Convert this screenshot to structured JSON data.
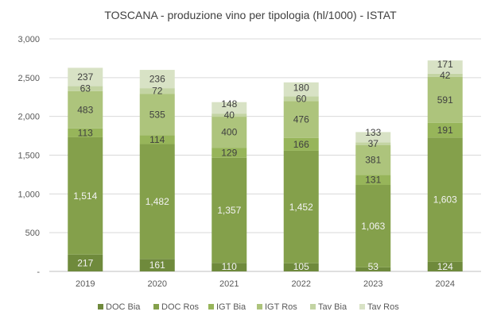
{
  "chart_data": {
    "type": "bar",
    "stacked": true,
    "title": "TOSCANA - produzione  vino per tipologia (hl/1000) - ISTAT",
    "xlabel": "",
    "ylabel": "",
    "categories": [
      "2019",
      "2020",
      "2021",
      "2022",
      "2023",
      "2024"
    ],
    "ylim": [
      0,
      3000
    ],
    "yticks": [
      0,
      500,
      1000,
      1500,
      2000,
      2500,
      3000
    ],
    "ytick_labels": [
      "-",
      "500",
      "1,000",
      "1,500",
      "2,000",
      "2,500",
      "3,000"
    ],
    "grid": true,
    "legend_position": "bottom",
    "series": [
      {
        "name": "DOC Bia",
        "color": "#6f8a3c",
        "label_color": "#f2f2f2",
        "values": [
          217,
          161,
          110,
          105,
          53,
          124
        ]
      },
      {
        "name": "DOC Ros",
        "color": "#84a04b",
        "label_color": "#f2f2f2",
        "values": [
          1514,
          1482,
          1357,
          1452,
          1063,
          1603
        ]
      },
      {
        "name": "IGT Bia",
        "color": "#97b55a",
        "label_color": "#404040",
        "values": [
          113,
          114,
          129,
          166,
          131,
          191
        ]
      },
      {
        "name": "IGT Ros",
        "color": "#adc47c",
        "label_color": "#404040",
        "values": [
          483,
          535,
          400,
          476,
          381,
          591
        ]
      },
      {
        "name": "Tav Bia",
        "color": "#c3d4a3",
        "label_color": "#404040",
        "values": [
          63,
          72,
          40,
          60,
          37,
          42
        ]
      },
      {
        "name": "Tav Ros",
        "color": "#d8e2c5",
        "label_color": "#404040",
        "values": [
          237,
          236,
          148,
          180,
          133,
          171
        ]
      }
    ]
  }
}
